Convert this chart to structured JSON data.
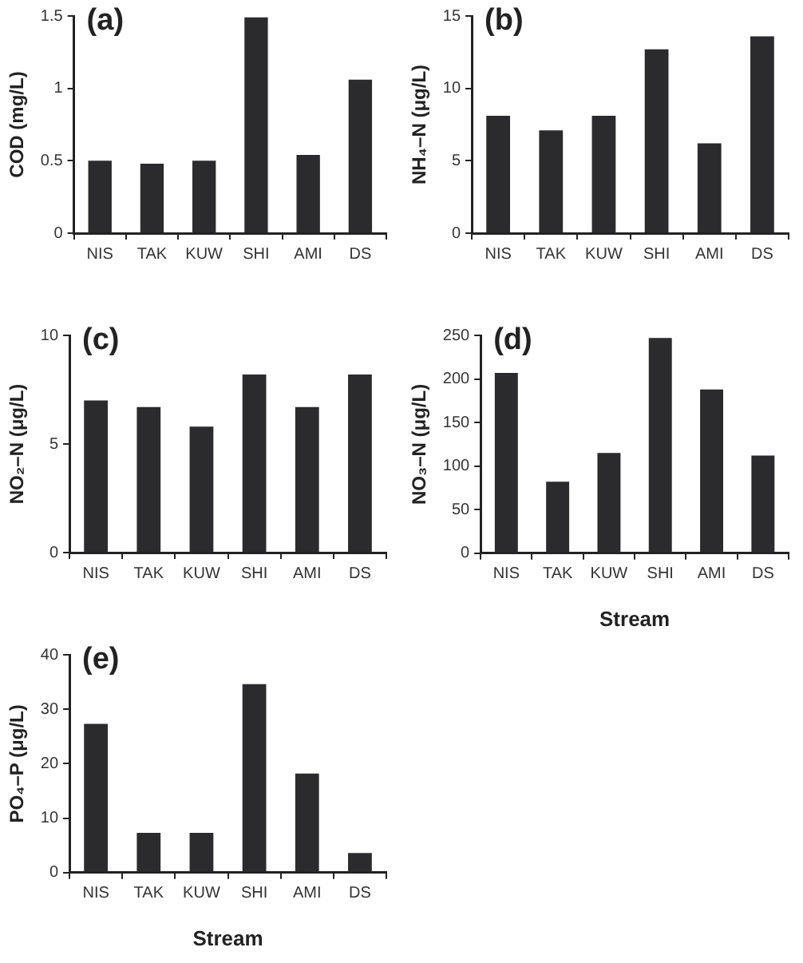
{
  "chart_data": [
    {
      "type": "bar",
      "title": "(a)",
      "ylabel": "COD (mg/L)",
      "categories": [
        "NIS",
        "TAK",
        "KUW",
        "SHI",
        "AMI",
        "DS"
      ],
      "values": [
        0.5,
        0.48,
        0.5,
        1.49,
        0.54,
        1.06
      ],
      "color": "#2b2b2e",
      "ylim": [
        0,
        1.5
      ],
      "yticks": [
        0,
        {
          "value": 0.5,
          "label": "0.5"
        },
        1,
        {
          "value": 1.5,
          "label": "1.5"
        }
      ],
      "grid": false,
      "legend": false
    },
    {
      "type": "bar",
      "title": "(b)",
      "ylabel": "NH₄–N (μg/L)",
      "categories": [
        "NIS",
        "TAK",
        "KUW",
        "SHI",
        "AMI",
        "DS"
      ],
      "values": [
        8.1,
        7.1,
        8.1,
        12.7,
        6.2,
        13.6
      ],
      "color": "#2b2b2e",
      "ylim": [
        0,
        15
      ],
      "yticks": [
        0,
        5,
        10,
        15
      ],
      "grid": false,
      "legend": false
    },
    {
      "type": "bar",
      "title": "(c)",
      "ylabel": "NO₂–N (μg/L)",
      "categories": [
        "NIS",
        "TAK",
        "KUW",
        "SHI",
        "AMI",
        "DS"
      ],
      "values": [
        7.0,
        6.7,
        5.8,
        8.2,
        6.7,
        8.2
      ],
      "color": "#2b2b2e",
      "ylim": [
        0,
        10
      ],
      "yticks": [
        0,
        5,
        10
      ],
      "grid": false,
      "legend": false
    },
    {
      "type": "bar",
      "title": "(d)",
      "ylabel": "NO₃–N (μg/L)",
      "xlabel": "Stream",
      "categories": [
        "NIS",
        "TAK",
        "KUW",
        "SHI",
        "AMI",
        "DS"
      ],
      "values": [
        207,
        82,
        115,
        247,
        188,
        112
      ],
      "color": "#2b2b2e",
      "ylim": [
        0,
        250
      ],
      "yticks": [
        0,
        50,
        100,
        150,
        200,
        250
      ],
      "grid": false,
      "legend": false
    },
    {
      "type": "bar",
      "title": "(e)",
      "ylabel": "PO₄–P (μg/L)",
      "xlabel": "Stream",
      "categories": [
        "NIS",
        "TAK",
        "KUW",
        "SHI",
        "AMI",
        "DS"
      ],
      "values": [
        27.3,
        7.3,
        7.3,
        34.6,
        18.2,
        3.6
      ],
      "color": "#2b2b2e",
      "ylim": [
        0,
        40
      ],
      "yticks": [
        0,
        10,
        20,
        30,
        40
      ],
      "grid": false,
      "legend": false
    }
  ]
}
